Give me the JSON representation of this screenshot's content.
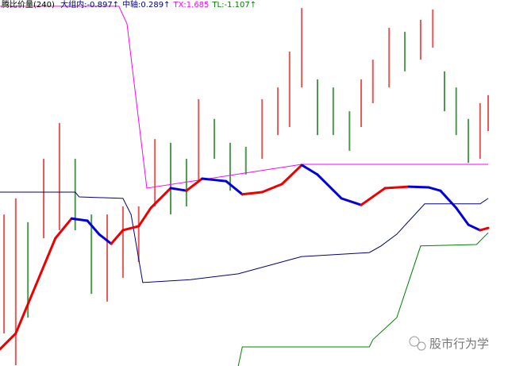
{
  "header": {
    "name": "腾比价量(240)",
    "items": [
      "大组内:-0.897↑",
      "中轴:0.289↑",
      "TX:1.685",
      "TL:-1.107↑"
    ],
    "item_colors": [
      "#000080",
      "#000080",
      "#ff00ff",
      "#008000"
    ]
  },
  "watermark": "股市行为学",
  "chart_data": {
    "type": "line",
    "xlim": [
      0,
      100
    ],
    "ylim": [
      0,
      100
    ],
    "candles": {
      "up_color": "#e03030",
      "down_color": "#208020",
      "x": [
        0.8,
        3.1,
        5.5,
        8.6,
        11.7,
        14.8,
        18.0,
        21.1,
        24.2,
        27.3,
        30.5,
        33.6,
        36.7,
        39.1,
        42.2,
        45.3,
        48.4,
        51.6,
        54.7,
        57.0,
        59.4,
        62.5,
        65.6,
        68.8,
        71.1,
        73.4,
        76.6,
        79.7,
        82.8,
        85.2,
        87.5,
        89.8,
        92.2,
        94.5,
        96.1
      ],
      "high": [
        41.4,
        45.8,
        39.3,
        56.6,
        66.4,
        56.6,
        41.4,
        41.4,
        43.6,
        43.6,
        62.0,
        61.0,
        56.6,
        72.9,
        67.5,
        61.0,
        59.9,
        72.9,
        76.1,
        85.9,
        97.8,
        78.3,
        76.1,
        69.6,
        78.3,
        83.7,
        92.4,
        91.3,
        94.6,
        97.4,
        80.5,
        76.1,
        67.5,
        71.8,
        74.0
      ],
      "low": [
        8.9,
        0.2,
        13.2,
        34.9,
        37.1,
        37.1,
        19.7,
        17.6,
        24.1,
        28.4,
        43.6,
        41.4,
        43.6,
        50.1,
        56.6,
        47.9,
        52.3,
        56.6,
        63.1,
        65.3,
        76.1,
        63.1,
        63.1,
        58.8,
        65.3,
        71.8,
        76.1,
        80.5,
        83.7,
        87.0,
        69.6,
        63.1,
        55.5,
        56.6,
        64.2
      ]
    },
    "series": [
      {
        "color": "#ff00ff",
        "x": [
          0,
          23.4,
          25,
          28.9,
          59.4,
          96.1
        ],
        "values": [
          98.3,
          98.3,
          93.5,
          48.6,
          55.1,
          55.1
        ]
      },
      {
        "color": "#000080",
        "x": [
          0,
          14.8,
          15.6,
          24.2,
          25.8,
          28.1,
          37.5,
          46.9,
          59.4,
          72.7,
          75,
          78.1,
          83.6,
          94.5,
          96.1
        ],
        "values": [
          47.5,
          47.5,
          46.2,
          45.8,
          41.4,
          22.8,
          23.6,
          25.2,
          29.9,
          31.0,
          32.8,
          36.0,
          44.3,
          44.3,
          45.8
        ]
      },
      {
        "color": "#008000",
        "x": [
          46.9,
          47.7,
          72.7,
          73.4,
          78.1,
          82.8,
          93.8,
          96.1
        ],
        "values": [
          0,
          5.2,
          5.2,
          7.2,
          13.2,
          32.8,
          33.2,
          36.4
        ]
      },
      {
        "up_color": "#ee0000",
        "down_color": "#0000dd",
        "x": [
          0,
          3.1,
          7.0,
          10.9,
          14.1,
          17.2,
          19.5,
          21.9,
          24.2,
          27.3,
          29.7,
          33.6,
          36.7,
          39.8,
          44.5,
          47.7,
          51.6,
          55.5,
          59.4,
          62.5,
          67.2,
          71.1,
          75.8,
          80.5,
          84.4,
          86.7,
          89.8,
          92.2,
          94.5,
          96.1
        ],
        "values": [
          4.6,
          8.9,
          21.9,
          34.9,
          40.3,
          39.7,
          36.0,
          33.4,
          37.1,
          38.2,
          43.2,
          48.6,
          47.9,
          51.2,
          50.5,
          46.9,
          47.5,
          49.7,
          54.9,
          52.3,
          45.8,
          44.0,
          48.6,
          49.0,
          48.8,
          47.9,
          43.2,
          38.6,
          37.1,
          37.7
        ]
      }
    ]
  }
}
